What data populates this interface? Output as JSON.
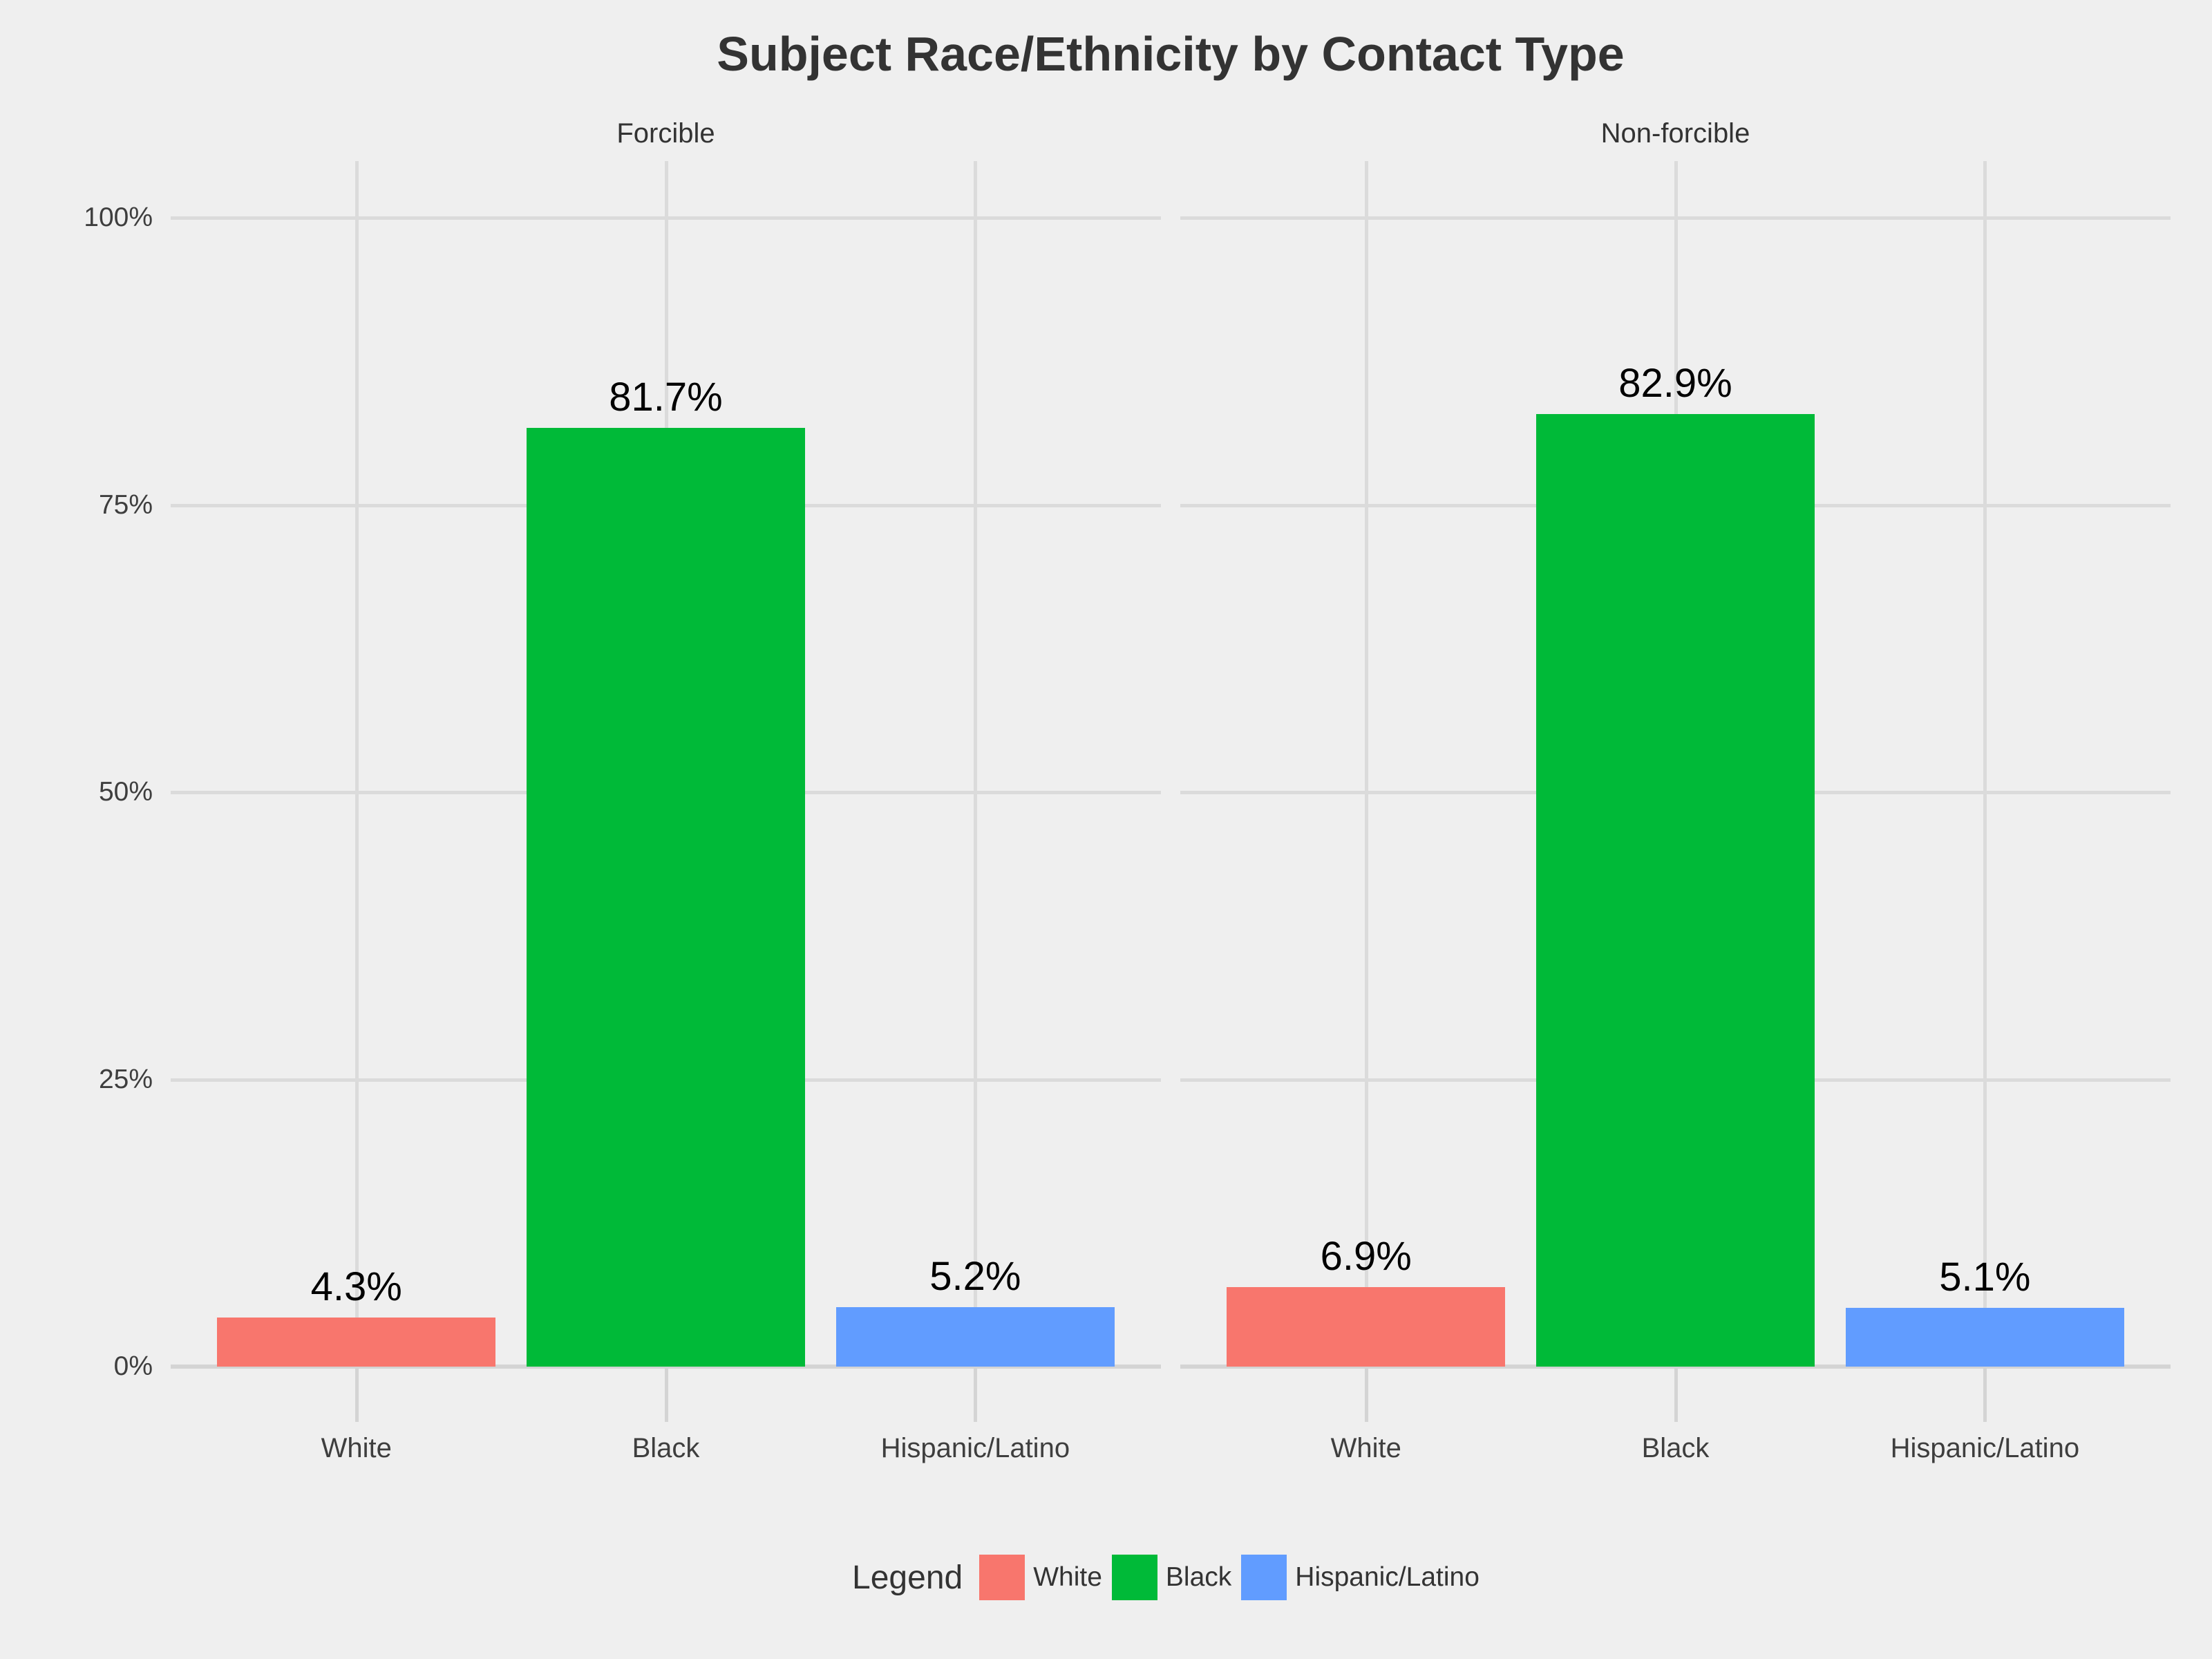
{
  "chart_data": {
    "type": "bar",
    "title": "Subject Race/Ethnicity by Contact Type",
    "categories": [
      "White",
      "Black",
      "Hispanic/Latino"
    ],
    "facets": [
      {
        "label": "Forcible",
        "values": [
          4.3,
          81.7,
          5.2
        ],
        "value_labels": [
          "4.3%",
          "81.7%",
          "5.2%"
        ]
      },
      {
        "label": "Non-forcible",
        "values": [
          6.9,
          82.9,
          5.1
        ],
        "value_labels": [
          "6.9%",
          "82.9%",
          "5.1%"
        ]
      }
    ],
    "y_axis": {
      "tick_labels": [
        "0%",
        "25%",
        "50%",
        "75%",
        "100%"
      ],
      "tick_values": [
        0,
        25,
        50,
        75,
        100
      ],
      "ylim": [
        0,
        105
      ]
    },
    "series_colors": {
      "White": "#F8766D",
      "Black": "#00BA38",
      "Hispanic/Latino": "#619CFF"
    },
    "legend": {
      "title": "Legend",
      "position": "bottom",
      "entries": [
        {
          "label": "White",
          "color": "#F8766D"
        },
        {
          "label": "Black",
          "color": "#00BA38"
        },
        {
          "label": "Hispanic/Latino",
          "color": "#619CFF"
        }
      ]
    },
    "grid": true
  },
  "colors": {
    "background": "#EFEFEF",
    "gridline": "#DBDBDB",
    "axis_line": "#D4D4D4",
    "title_text": "#333333",
    "axis_text": "#3E3E3E",
    "value_label_text": "#000000"
  }
}
